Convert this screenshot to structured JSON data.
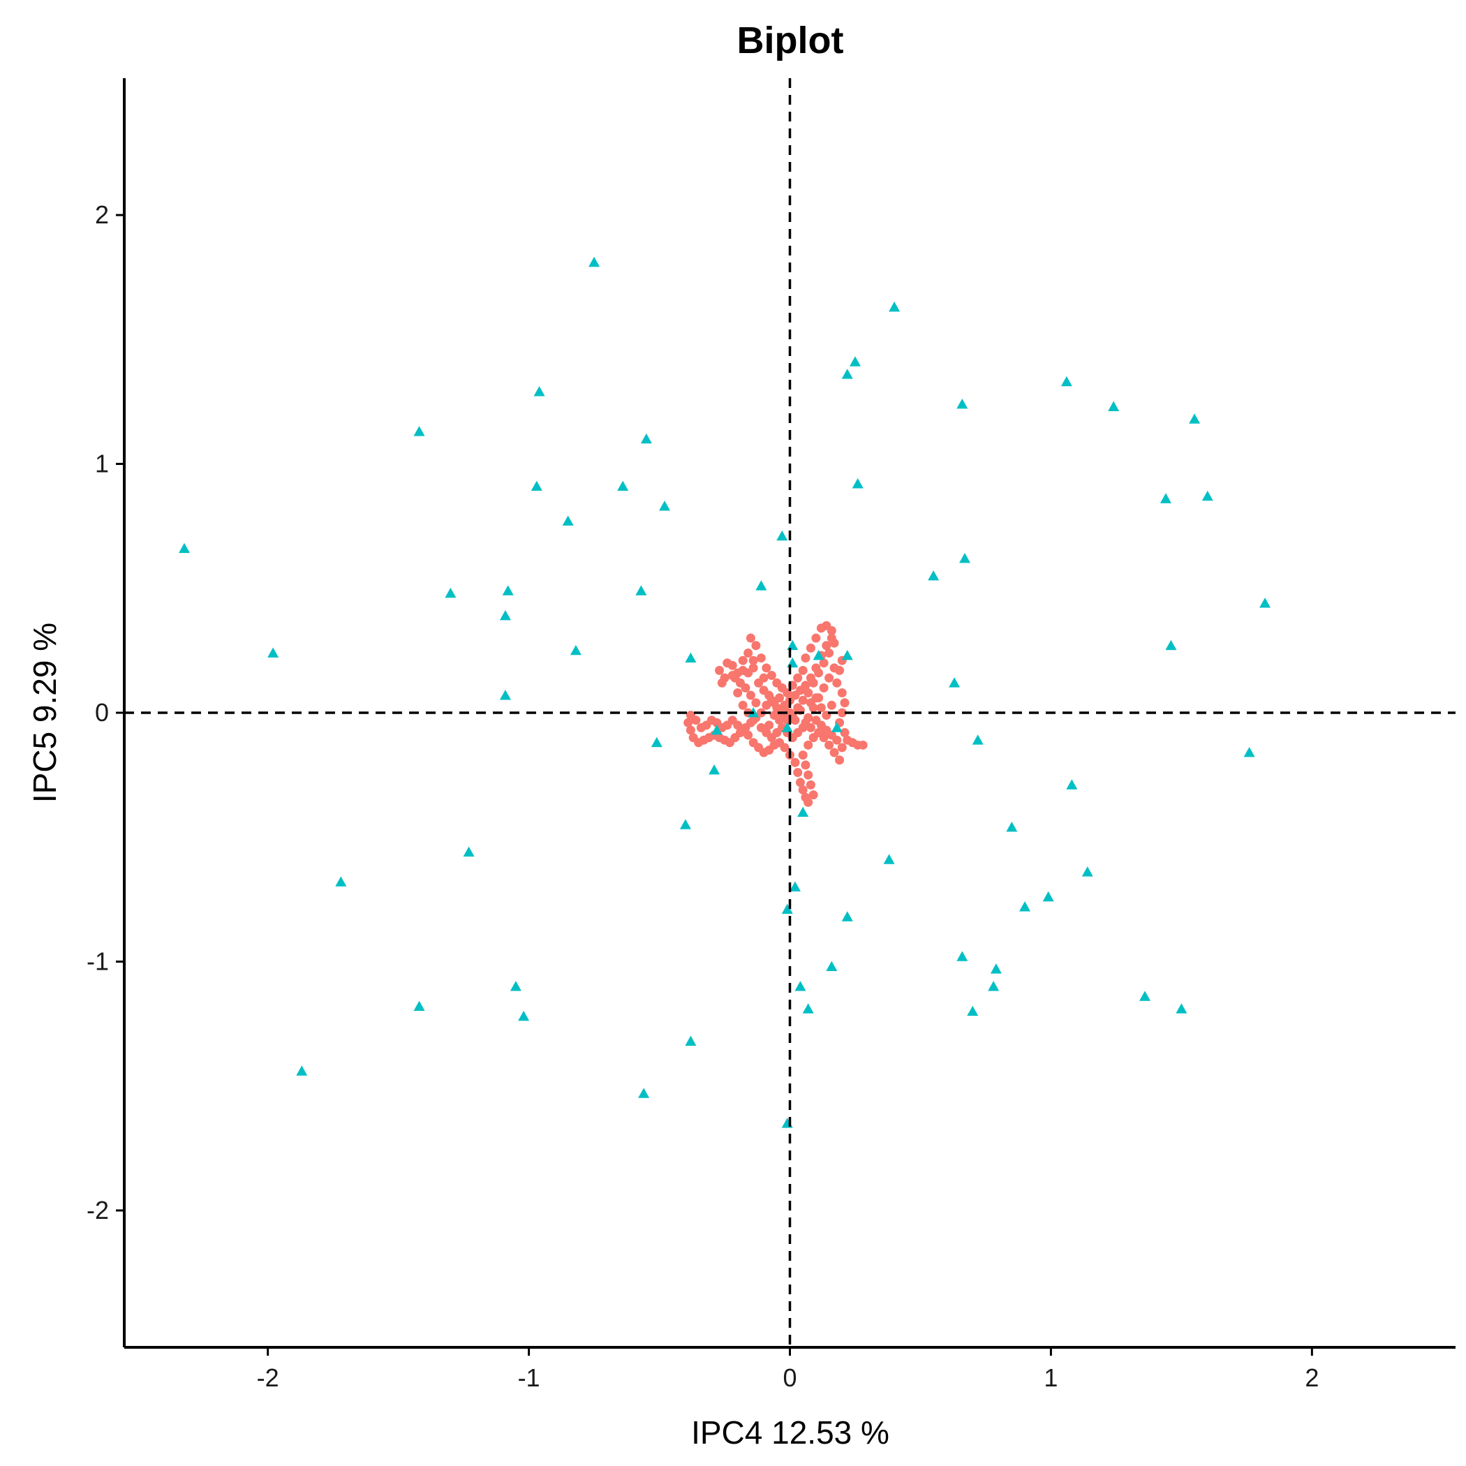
{
  "chart_data": {
    "type": "scatter",
    "title": "Biplot",
    "xlabel": "IPC4 12.53 %",
    "ylabel": "IPC5 9.29 %",
    "xlim": [
      -2.55,
      2.55
    ],
    "ylim": [
      -2.55,
      2.55
    ],
    "x_ticks": [
      -2,
      -1,
      0,
      1,
      2
    ],
    "y_ticks": [
      -2,
      -1,
      0,
      1,
      2
    ],
    "reference_lines": {
      "x": 0,
      "y": 0,
      "style": "dashed"
    },
    "grid": false,
    "legend": "none",
    "colors": {
      "scores": "#F8766D",
      "loadings": "#00BFC4",
      "axis": "#000000"
    },
    "series": [
      {
        "marker": "triangle",
        "color": "#00BFC4",
        "points": [
          [
            -2.32,
            0.66
          ],
          [
            -1.98,
            0.24
          ],
          [
            -1.72,
            -0.68
          ],
          [
            -1.87,
            -1.44
          ],
          [
            -1.42,
            1.13
          ],
          [
            -1.3,
            0.48
          ],
          [
            -1.42,
            -1.18
          ],
          [
            -1.23,
            -0.56
          ],
          [
            -1.08,
            0.49
          ],
          [
            -1.09,
            0.39
          ],
          [
            -1.09,
            0.07
          ],
          [
            -1.05,
            -1.1
          ],
          [
            -1.02,
            -1.22
          ],
          [
            -0.96,
            1.29
          ],
          [
            -0.97,
            0.91
          ],
          [
            -0.85,
            0.77
          ],
          [
            -0.82,
            0.25
          ],
          [
            -0.75,
            1.81
          ],
          [
            -0.64,
            0.91
          ],
          [
            -0.55,
            1.1
          ],
          [
            -0.57,
            0.49
          ],
          [
            -0.48,
            0.83
          ],
          [
            -0.51,
            -0.12
          ],
          [
            -0.56,
            -1.53
          ],
          [
            -0.38,
            0.22
          ],
          [
            -0.4,
            -0.45
          ],
          [
            -0.38,
            -1.32
          ],
          [
            -0.29,
            -0.23
          ],
          [
            -0.28,
            -0.07
          ],
          [
            -0.14,
            0.0
          ],
          [
            -0.11,
            0.51
          ],
          [
            -0.03,
            0.71
          ],
          [
            0.01,
            0.27
          ],
          [
            0.01,
            0.2
          ],
          [
            -0.01,
            -0.06
          ],
          [
            -0.01,
            -0.79
          ],
          [
            0.02,
            -0.7
          ],
          [
            0.04,
            -1.1
          ],
          [
            0.05,
            -0.4
          ],
          [
            0.07,
            -1.19
          ],
          [
            -0.01,
            -1.65
          ],
          [
            0.11,
            0.23
          ],
          [
            0.16,
            -1.02
          ],
          [
            0.18,
            -0.06
          ],
          [
            0.22,
            1.36
          ],
          [
            0.22,
            0.23
          ],
          [
            0.25,
            1.41
          ],
          [
            0.26,
            0.92
          ],
          [
            0.22,
            -0.82
          ],
          [
            0.38,
            -0.59
          ],
          [
            0.4,
            1.63
          ],
          [
            0.55,
            0.55
          ],
          [
            0.63,
            0.12
          ],
          [
            0.66,
            1.24
          ],
          [
            0.67,
            0.62
          ],
          [
            0.66,
            -0.98
          ],
          [
            0.7,
            -1.2
          ],
          [
            0.72,
            -0.11
          ],
          [
            0.78,
            -1.1
          ],
          [
            0.79,
            -1.03
          ],
          [
            0.85,
            -0.46
          ],
          [
            0.9,
            -0.78
          ],
          [
            0.99,
            -0.74
          ],
          [
            1.06,
            1.33
          ],
          [
            1.08,
            -0.29
          ],
          [
            1.14,
            -0.64
          ],
          [
            1.24,
            1.23
          ],
          [
            1.36,
            -1.14
          ],
          [
            1.44,
            0.86
          ],
          [
            1.46,
            0.27
          ],
          [
            1.5,
            -1.19
          ],
          [
            1.55,
            1.18
          ],
          [
            1.6,
            0.87
          ],
          [
            1.76,
            -0.16
          ],
          [
            1.82,
            0.44
          ]
        ]
      },
      {
        "marker": "circle",
        "color": "#F8766D",
        "description_counts": "dense cluster",
        "points": [
          [
            -0.24,
            0.2
          ],
          [
            -0.27,
            0.17
          ],
          [
            -0.25,
            0.14
          ],
          [
            -0.22,
            0.19
          ],
          [
            -0.2,
            0.16
          ],
          [
            -0.18,
            0.21
          ],
          [
            -0.16,
            0.24
          ],
          [
            -0.15,
            0.3
          ],
          [
            -0.13,
            0.27
          ],
          [
            -0.11,
            0.22
          ],
          [
            -0.09,
            0.18
          ],
          [
            -0.07,
            0.15
          ],
          [
            -0.05,
            0.12
          ],
          [
            -0.03,
            0.1
          ],
          [
            -0.01,
            0.08
          ],
          [
            0.01,
            0.11
          ],
          [
            0.03,
            0.14
          ],
          [
            0.05,
            0.17
          ],
          [
            0.06,
            0.22
          ],
          [
            0.08,
            0.26
          ],
          [
            0.1,
            0.3
          ],
          [
            0.12,
            0.34
          ],
          [
            0.14,
            0.35
          ],
          [
            0.16,
            0.33
          ],
          [
            0.17,
            0.28
          ],
          [
            0.15,
            0.24
          ],
          [
            0.13,
            0.2
          ],
          [
            0.11,
            0.16
          ],
          [
            0.09,
            0.12
          ],
          [
            0.07,
            0.08
          ],
          [
            0.05,
            0.05
          ],
          [
            0.03,
            0.02
          ],
          [
            0.01,
            -0.01
          ],
          [
            -0.01,
            -0.03
          ],
          [
            -0.03,
            -0.01
          ],
          [
            -0.05,
            0.02
          ],
          [
            -0.07,
            0.05
          ],
          [
            -0.09,
            0.03
          ],
          [
            -0.11,
            0.0
          ],
          [
            -0.13,
            -0.02
          ],
          [
            -0.15,
            -0.04
          ],
          [
            -0.17,
            -0.06
          ],
          [
            -0.19,
            -0.08
          ],
          [
            -0.21,
            -0.1
          ],
          [
            -0.23,
            -0.12
          ],
          [
            -0.25,
            -0.11
          ],
          [
            -0.27,
            -0.1
          ],
          [
            -0.29,
            -0.09
          ],
          [
            -0.31,
            -0.1
          ],
          [
            -0.33,
            -0.11
          ],
          [
            -0.35,
            -0.12
          ],
          [
            -0.37,
            -0.1
          ],
          [
            -0.38,
            -0.07
          ],
          [
            -0.39,
            -0.04
          ],
          [
            -0.38,
            -0.01
          ],
          [
            -0.36,
            -0.03
          ],
          [
            -0.34,
            -0.06
          ],
          [
            -0.32,
            -0.05
          ],
          [
            -0.3,
            -0.03
          ],
          [
            -0.28,
            -0.04
          ],
          [
            -0.26,
            -0.06
          ],
          [
            -0.24,
            -0.05
          ],
          [
            -0.22,
            -0.03
          ],
          [
            -0.2,
            -0.05
          ],
          [
            -0.18,
            -0.07
          ],
          [
            -0.16,
            -0.09
          ],
          [
            -0.14,
            -0.12
          ],
          [
            -0.12,
            -0.14
          ],
          [
            -0.1,
            -0.16
          ],
          [
            -0.08,
            -0.15
          ],
          [
            -0.06,
            -0.13
          ],
          [
            -0.04,
            -0.12
          ],
          [
            -0.02,
            -0.14
          ],
          [
            0.0,
            -0.17
          ],
          [
            0.02,
            -0.2
          ],
          [
            0.03,
            -0.24
          ],
          [
            0.04,
            -0.28
          ],
          [
            0.05,
            -0.31
          ],
          [
            0.06,
            -0.34
          ],
          [
            0.07,
            -0.36
          ],
          [
            0.09,
            -0.33
          ],
          [
            0.08,
            -0.29
          ],
          [
            0.07,
            -0.25
          ],
          [
            0.06,
            -0.21
          ],
          [
            0.05,
            -0.17
          ],
          [
            0.07,
            -0.13
          ],
          [
            0.09,
            -0.1
          ],
          [
            0.11,
            -0.08
          ],
          [
            0.13,
            -0.1
          ],
          [
            0.15,
            -0.13
          ],
          [
            0.17,
            -0.16
          ],
          [
            0.19,
            -0.19
          ],
          [
            0.2,
            -0.14
          ],
          [
            0.22,
            -0.11
          ],
          [
            0.24,
            -0.12
          ],
          [
            0.26,
            -0.13
          ],
          [
            0.28,
            -0.13
          ],
          [
            0.21,
            -0.08
          ],
          [
            0.19,
            -0.04
          ],
          [
            0.2,
            0.0
          ],
          [
            0.21,
            0.04
          ],
          [
            0.2,
            0.08
          ],
          [
            0.18,
            0.12
          ],
          [
            0.19,
            0.17
          ],
          [
            0.2,
            0.21
          ],
          [
            0.17,
            0.18
          ],
          [
            0.15,
            0.14
          ],
          [
            0.13,
            0.1
          ],
          [
            0.11,
            0.06
          ],
          [
            0.09,
            0.02
          ],
          [
            0.07,
            -0.02
          ],
          [
            0.05,
            -0.06
          ],
          [
            0.03,
            -0.08
          ],
          [
            0.01,
            -0.1
          ],
          [
            -0.01,
            -0.08
          ],
          [
            -0.03,
            -0.06
          ],
          [
            -0.05,
            -0.08
          ],
          [
            -0.07,
            -0.1
          ],
          [
            -0.09,
            -0.08
          ],
          [
            -0.11,
            -0.06
          ],
          [
            -0.13,
            0.04
          ],
          [
            -0.15,
            0.07
          ],
          [
            -0.17,
            0.1
          ],
          [
            -0.19,
            0.12
          ],
          [
            -0.21,
            0.14
          ],
          [
            -0.12,
            0.12
          ],
          [
            -0.1,
            0.09
          ],
          [
            -0.08,
            0.07
          ],
          [
            -0.06,
            0.04
          ],
          [
            -0.04,
            0.06
          ],
          [
            -0.02,
            0.03
          ],
          [
            0.0,
            0.05
          ],
          [
            0.02,
            0.07
          ],
          [
            0.04,
            0.09
          ],
          [
            0.06,
            0.11
          ],
          [
            0.08,
            0.14
          ],
          [
            0.1,
            0.18
          ],
          [
            0.12,
            0.23
          ],
          [
            0.14,
            0.27
          ],
          [
            0.16,
            0.3
          ],
          [
            0.0,
            0.0
          ],
          [
            0.02,
            -0.03
          ],
          [
            -0.02,
            0.01
          ],
          [
            0.04,
            0.01
          ],
          [
            -0.04,
            -0.03
          ],
          [
            0.06,
            -0.04
          ],
          [
            -0.06,
            -0.01
          ],
          [
            0.08,
            -0.06
          ],
          [
            -0.08,
            -0.05
          ],
          [
            0.1,
            -0.03
          ],
          [
            0.12,
            -0.05
          ],
          [
            0.14,
            -0.07
          ],
          [
            0.16,
            -0.09
          ],
          [
            0.18,
            -0.11
          ],
          [
            0.14,
            -0.01
          ],
          [
            0.16,
            0.03
          ],
          [
            0.12,
            0.02
          ],
          [
            0.1,
            0.06
          ],
          [
            0.08,
            0.04
          ],
          [
            -0.1,
            0.14
          ],
          [
            -0.14,
            0.18
          ],
          [
            -0.18,
            0.17
          ],
          [
            -0.22,
            0.15
          ],
          [
            -0.26,
            0.12
          ],
          [
            -0.14,
            0.21
          ],
          [
            -0.16,
            0.16
          ],
          [
            -0.2,
            0.08
          ],
          [
            -0.18,
            0.03
          ],
          [
            -0.16,
            0.0
          ],
          [
            -0.14,
            -0.03
          ]
        ]
      }
    ]
  }
}
